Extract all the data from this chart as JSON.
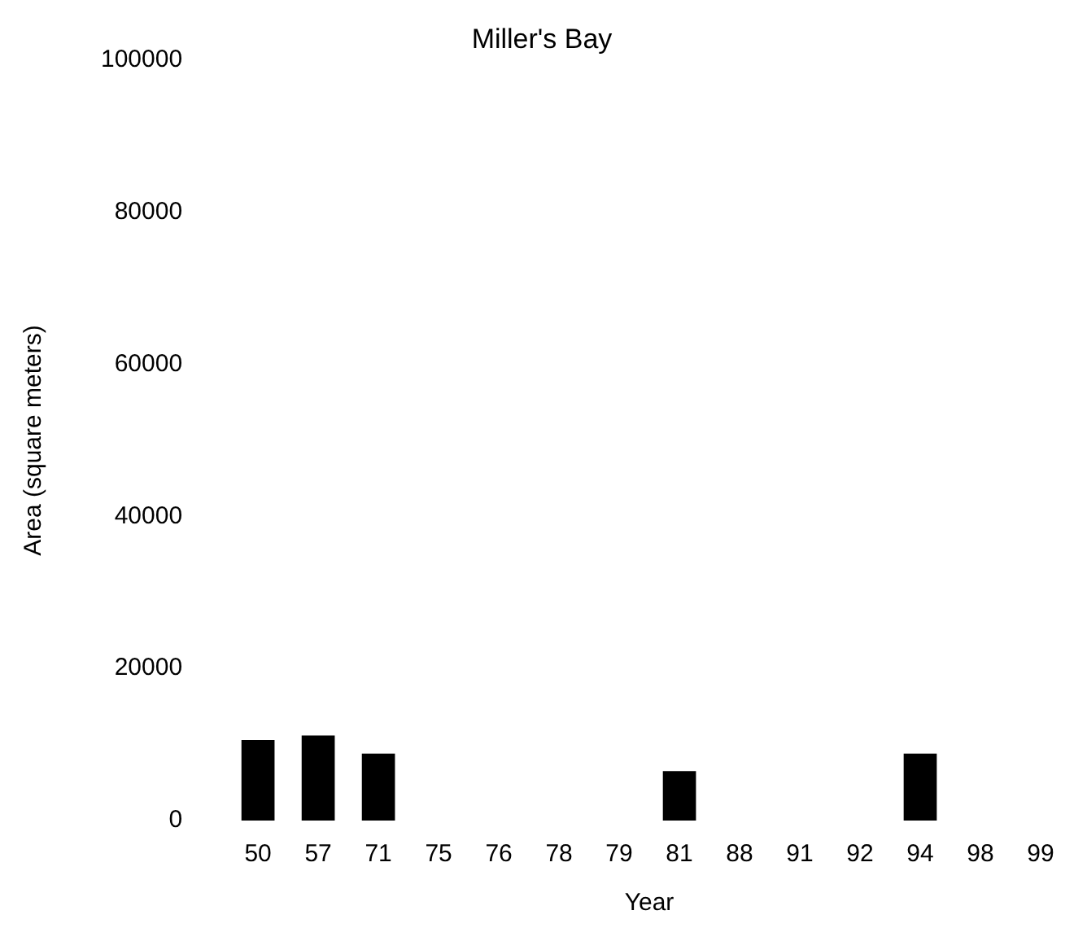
{
  "chart_data": {
    "type": "bar",
    "title": "Miller's Bay",
    "xlabel": "Year",
    "ylabel": "Area (square meters)",
    "categories": [
      "50",
      "57",
      "71",
      "75",
      "76",
      "78",
      "79",
      "81",
      "88",
      "91",
      "92",
      "94",
      "98",
      "99"
    ],
    "values": [
      10600,
      11200,
      8800,
      0,
      0,
      0,
      0,
      6500,
      0,
      0,
      0,
      8800,
      0,
      0
    ],
    "color": "#000000",
    "ylim": [
      0,
      100000
    ],
    "yticks": [
      0,
      20000,
      40000,
      60000,
      80000,
      100000
    ],
    "grid": false,
    "legend": false
  }
}
